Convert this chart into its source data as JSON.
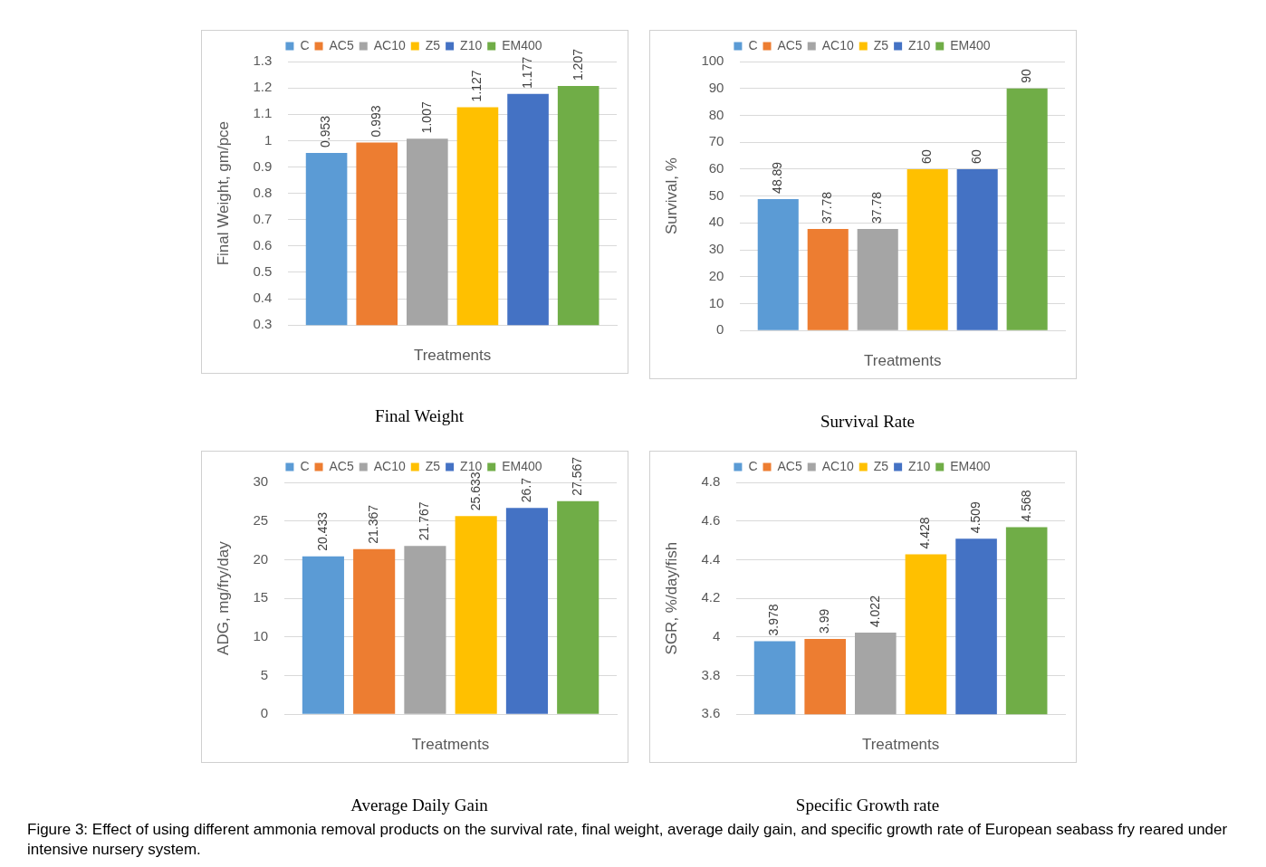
{
  "chart_data": [
    {
      "type": "bar",
      "title": "Final Weight",
      "xlabel": "Treatments",
      "ylabel": "Final Weight, gm/pce",
      "categories": [
        null
      ],
      "legend": "top",
      "grid": "y",
      "data_labels": true,
      "ylim": [
        0.3,
        1.3
      ],
      "yticks": [
        0.3,
        0.4,
        0.5,
        0.6,
        0.7,
        0.8,
        0.9,
        1,
        1.1,
        1.2,
        1.3
      ],
      "series": [
        {
          "name": "C",
          "color": "#5b9bd5",
          "values": [
            0.953
          ]
        },
        {
          "name": "AC5",
          "color": "#ed7d31",
          "values": [
            0.993
          ]
        },
        {
          "name": "AC10",
          "color": "#a5a5a5",
          "values": [
            1.007
          ]
        },
        {
          "name": "Z5",
          "color": "#ffc000",
          "values": [
            1.127
          ]
        },
        {
          "name": "Z10",
          "color": "#4472c4",
          "values": [
            1.177
          ]
        },
        {
          "name": "EM400",
          "color": "#70ad47",
          "values": [
            1.207
          ]
        }
      ]
    },
    {
      "type": "bar",
      "title": "Survival Rate",
      "xlabel": "Treatments",
      "ylabel": "Survival, %",
      "categories": [
        null
      ],
      "legend": "top",
      "grid": "y",
      "data_labels": true,
      "ylim": [
        0,
        100
      ],
      "yticks": [
        0,
        10,
        20,
        30,
        40,
        50,
        60,
        70,
        80,
        90,
        100
      ],
      "series": [
        {
          "name": "C",
          "color": "#5b9bd5",
          "values": [
            48.89
          ]
        },
        {
          "name": "AC5",
          "color": "#ed7d31",
          "values": [
            37.78
          ]
        },
        {
          "name": "AC10",
          "color": "#a5a5a5",
          "values": [
            37.78
          ]
        },
        {
          "name": "Z5",
          "color": "#ffc000",
          "values": [
            60
          ]
        },
        {
          "name": "Z10",
          "color": "#4472c4",
          "values": [
            60
          ]
        },
        {
          "name": "EM400",
          "color": "#70ad47",
          "values": [
            90
          ]
        }
      ]
    },
    {
      "type": "bar",
      "title": "Average Daily Gain",
      "xlabel": "Treatments",
      "ylabel": "ADG, mg/fry/day",
      "categories": [
        null
      ],
      "legend": "top",
      "grid": "y",
      "data_labels": true,
      "ylim": [
        0,
        30
      ],
      "yticks": [
        0,
        5,
        10,
        15,
        20,
        25,
        30
      ],
      "series": [
        {
          "name": "C",
          "color": "#5b9bd5",
          "values": [
            20.433
          ]
        },
        {
          "name": "AC5",
          "color": "#ed7d31",
          "values": [
            21.367
          ]
        },
        {
          "name": "AC10",
          "color": "#a5a5a5",
          "values": [
            21.767
          ]
        },
        {
          "name": "Z5",
          "color": "#ffc000",
          "values": [
            25.633
          ]
        },
        {
          "name": "Z10",
          "color": "#4472c4",
          "values": [
            26.7
          ]
        },
        {
          "name": "EM400",
          "color": "#70ad47",
          "values": [
            27.567
          ]
        }
      ]
    },
    {
      "type": "bar",
      "title": "Specific Growth rate",
      "xlabel": "Treatments",
      "ylabel": "SGR, %/day/fish",
      "categories": [
        null
      ],
      "legend": "top",
      "grid": "y",
      "data_labels": true,
      "ylim": [
        3.6,
        4.8
      ],
      "yticks": [
        3.6,
        3.8,
        4,
        4.2,
        4.4,
        4.6,
        4.8
      ],
      "annotations": [
        "Figure 3: Effect of using different ammonia removal products on the survival rate, final weight, average daily gain, and specific growth rate of European seabass fry reared under intensive nursery system."
      ],
      "series": [
        {
          "name": "C",
          "color": "#5b9bd5",
          "values": [
            3.978
          ]
        },
        {
          "name": "AC5",
          "color": "#ed7d31",
          "values": [
            3.99
          ]
        },
        {
          "name": "AC10",
          "color": "#a5a5a5",
          "values": [
            4.022
          ]
        },
        {
          "name": "Z5",
          "color": "#ffc000",
          "values": [
            4.428
          ]
        },
        {
          "name": "Z10",
          "color": "#4472c4",
          "values": [
            4.509
          ]
        },
        {
          "name": "EM400",
          "color": "#70ad47",
          "values": [
            4.568
          ]
        }
      ]
    }
  ]
}
